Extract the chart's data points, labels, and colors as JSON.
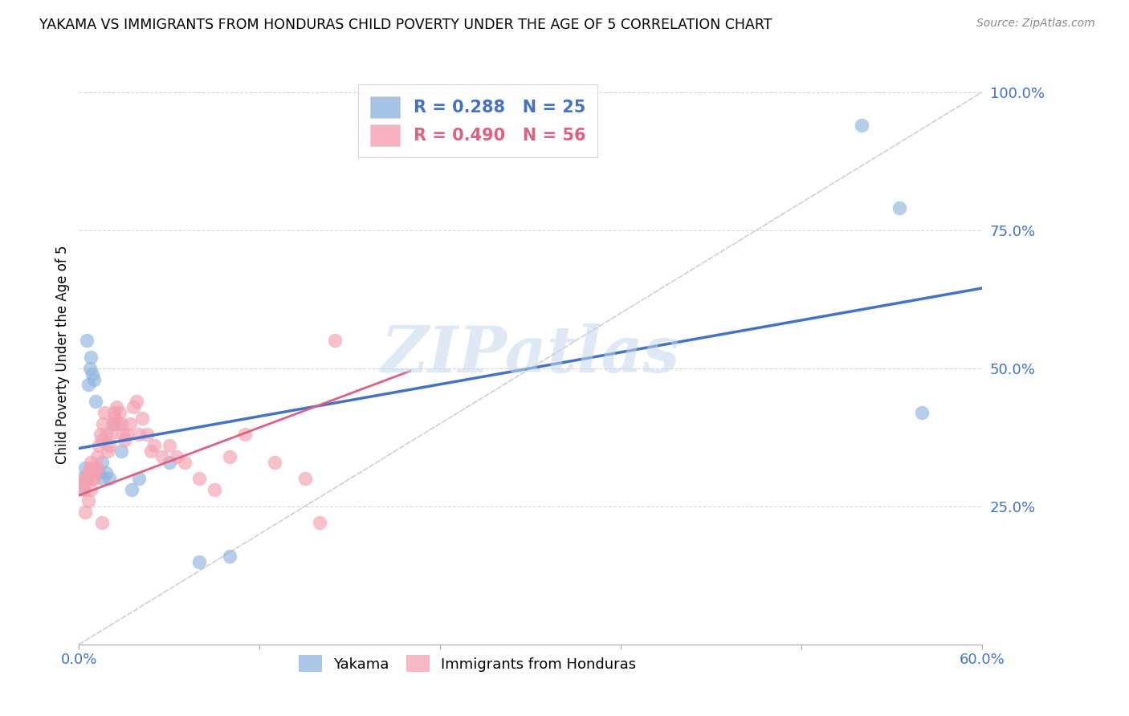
{
  "title": "YAKAMA VS IMMIGRANTS FROM HONDURAS CHILD POVERTY UNDER THE AGE OF 5 CORRELATION CHART",
  "source": "Source: ZipAtlas.com",
  "ylabel": "Child Poverty Under the Age of 5",
  "xlim": [
    0.0,
    0.6
  ],
  "ylim": [
    0.0,
    1.05
  ],
  "xticks": [
    0.0,
    0.12,
    0.24,
    0.36,
    0.48,
    0.6
  ],
  "xtick_labels": [
    "0.0%",
    "",
    "",
    "",
    "",
    "60.0%"
  ],
  "yticks_right": [
    0.25,
    0.5,
    0.75,
    1.0
  ],
  "ytick_labels_right": [
    "25.0%",
    "50.0%",
    "75.0%",
    "100.0%"
  ],
  "blue_R": 0.288,
  "blue_N": 25,
  "pink_R": 0.49,
  "pink_N": 56,
  "blue_color": "#90b4e0",
  "pink_color": "#f4a0b0",
  "blue_line_color": "#4472C4",
  "pink_line_color": "#E06080",
  "diag_color": "#d0d0d0",
  "watermark": "ZIPatlas",
  "watermark_color": "#C5D8EE",
  "blue_line_x0": 0.0,
  "blue_line_y0": 0.355,
  "blue_line_x1": 0.6,
  "blue_line_y1": 0.645,
  "pink_line_x0": 0.0,
  "pink_line_x1": 0.22,
  "pink_line_y0": 0.27,
  "pink_line_y1": 0.495,
  "yakama_x": [
    0.002,
    0.003,
    0.004,
    0.005,
    0.006,
    0.007,
    0.008,
    0.009,
    0.01,
    0.011,
    0.013,
    0.015,
    0.016,
    0.018,
    0.02,
    0.023,
    0.028,
    0.035,
    0.04,
    0.06,
    0.08,
    0.1,
    0.52,
    0.545,
    0.56
  ],
  "yakama_y": [
    0.3,
    0.28,
    0.32,
    0.55,
    0.47,
    0.5,
    0.52,
    0.49,
    0.48,
    0.44,
    0.31,
    0.33,
    0.3,
    0.31,
    0.3,
    0.4,
    0.35,
    0.28,
    0.3,
    0.33,
    0.15,
    0.16,
    0.94,
    0.79,
    0.42
  ],
  "honduras_x": [
    0.002,
    0.003,
    0.004,
    0.005,
    0.006,
    0.007,
    0.008,
    0.009,
    0.01,
    0.011,
    0.012,
    0.013,
    0.014,
    0.015,
    0.016,
    0.017,
    0.018,
    0.019,
    0.02,
    0.021,
    0.022,
    0.023,
    0.024,
    0.025,
    0.026,
    0.027,
    0.028,
    0.029,
    0.03,
    0.032,
    0.034,
    0.036,
    0.038,
    0.04,
    0.042,
    0.045,
    0.048,
    0.05,
    0.055,
    0.06,
    0.065,
    0.07,
    0.08,
    0.09,
    0.1,
    0.11,
    0.13,
    0.15,
    0.16,
    0.17,
    0.004,
    0.006,
    0.008,
    0.01,
    0.012,
    0.015
  ],
  "honduras_y": [
    0.29,
    0.28,
    0.3,
    0.3,
    0.31,
    0.32,
    0.33,
    0.3,
    0.31,
    0.32,
    0.34,
    0.36,
    0.38,
    0.37,
    0.4,
    0.42,
    0.38,
    0.35,
    0.36,
    0.38,
    0.4,
    0.42,
    0.41,
    0.43,
    0.4,
    0.42,
    0.4,
    0.38,
    0.37,
    0.38,
    0.4,
    0.43,
    0.44,
    0.38,
    0.41,
    0.38,
    0.35,
    0.36,
    0.34,
    0.36,
    0.34,
    0.33,
    0.3,
    0.28,
    0.34,
    0.38,
    0.33,
    0.3,
    0.22,
    0.55,
    0.24,
    0.26,
    0.28,
    0.3,
    0.32,
    0.22
  ]
}
